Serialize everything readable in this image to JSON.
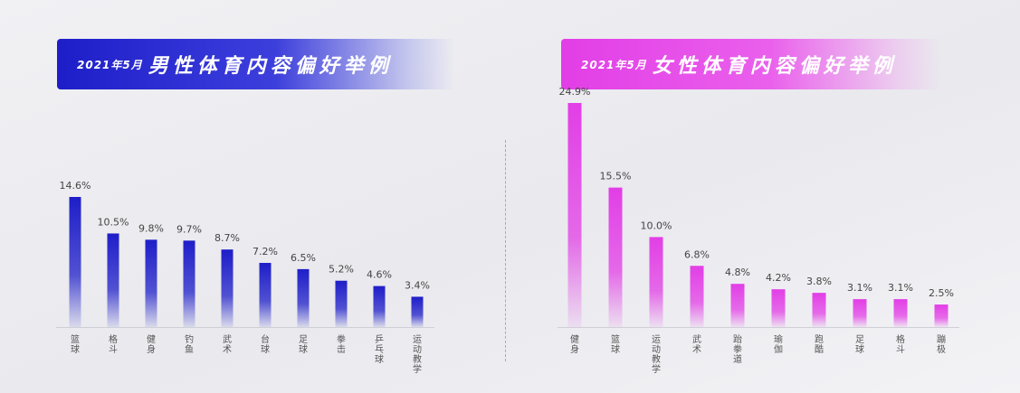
{
  "left": {
    "date": "2021年5月",
    "title": "男性体育内容偏好举例",
    "accent": "#1e1ec9",
    "chart_data": {
      "type": "bar",
      "categories": [
        "篮球",
        "格斗",
        "健身",
        "钓鱼",
        "武术",
        "台球",
        "足球",
        "拳击",
        "乒乓球",
        "运动教学"
      ],
      "values": [
        14.6,
        10.5,
        9.8,
        9.7,
        8.7,
        7.2,
        6.5,
        5.2,
        4.6,
        3.4
      ],
      "value_labels": [
        "14.6%",
        "10.5%",
        "9.8%",
        "9.7%",
        "8.7%",
        "7.2%",
        "6.5%",
        "5.2%",
        "4.6%",
        "3.4%"
      ],
      "unit": "%",
      "grid": false,
      "legend": "none"
    }
  },
  "right": {
    "date": "2021年5月",
    "title": "女性体育内容偏好举例",
    "accent": "#e23ee6",
    "chart_data": {
      "type": "bar",
      "categories": [
        "健身",
        "篮球",
        "运动教学",
        "武术",
        "跆拳道",
        "瑜伽",
        "跑酷",
        "足球",
        "格斗",
        "蹦极"
      ],
      "values": [
        24.9,
        15.5,
        10.0,
        6.8,
        4.8,
        4.2,
        3.8,
        3.1,
        3.1,
        2.5
      ],
      "value_labels": [
        "24.9%",
        "15.5%",
        "10.0%",
        "6.8%",
        "4.8%",
        "4.2%",
        "3.8%",
        "3.1%",
        "3.1%",
        "2.5%"
      ],
      "unit": "%",
      "grid": false,
      "legend": "none"
    }
  }
}
